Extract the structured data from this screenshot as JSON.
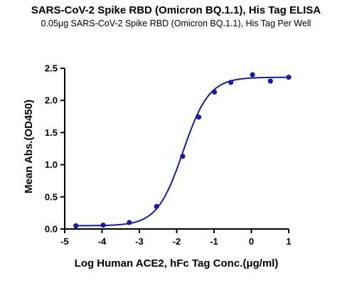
{
  "chart_data": {
    "type": "scatter",
    "title": "SARS-CoV-2 Spike RBD (Omicron BQ.1.1), His Tag ELISA",
    "subtitle": "0.05μg SARS-CoV-2 Spike RBD (Omicron BQ.1.1), His Tag Per Well",
    "xlabel": "Log Human ACE2, hFc Tag Conc.(μg/ml)",
    "ylabel": "Mean Abs.(OD450)",
    "xlim": [
      -5,
      1
    ],
    "ylim": [
      0,
      2.5
    ],
    "x_ticks": [
      -5,
      -4,
      -3,
      -2,
      -1,
      0,
      1
    ],
    "y_ticks": [
      0.0,
      0.5,
      1.0,
      1.5,
      2.0,
      2.5
    ],
    "x_tick_labels": [
      "-5",
      "-4",
      "-3",
      "-2",
      "-1",
      "0",
      "1"
    ],
    "y_tick_labels": [
      "0.0",
      "0.5",
      "1.0",
      "1.5",
      "2.0",
      "2.5"
    ],
    "series": [
      {
        "points": [
          {
            "x": -4.7,
            "y": 0.05
          },
          {
            "x": -3.97,
            "y": 0.06
          },
          {
            "x": -3.27,
            "y": 0.1
          },
          {
            "x": -2.54,
            "y": 0.35
          },
          {
            "x": -1.84,
            "y": 1.13
          },
          {
            "x": -1.41,
            "y": 1.74
          },
          {
            "x": -0.99,
            "y": 2.13
          },
          {
            "x": -0.55,
            "y": 2.28
          },
          {
            "x": 0.03,
            "y": 2.4
          },
          {
            "x": 0.51,
            "y": 2.3
          },
          {
            "x": 1.0,
            "y": 2.36
          }
        ]
      }
    ],
    "fit_curve": {
      "model": "4PL",
      "bottom": 0.05,
      "top": 2.36,
      "logEC50": -1.83,
      "hill": 1.25,
      "x_range": [
        -4.7,
        1.0
      ]
    },
    "colors": {
      "series": "#1a1a9c",
      "axis": "#000000"
    },
    "grid": false
  }
}
